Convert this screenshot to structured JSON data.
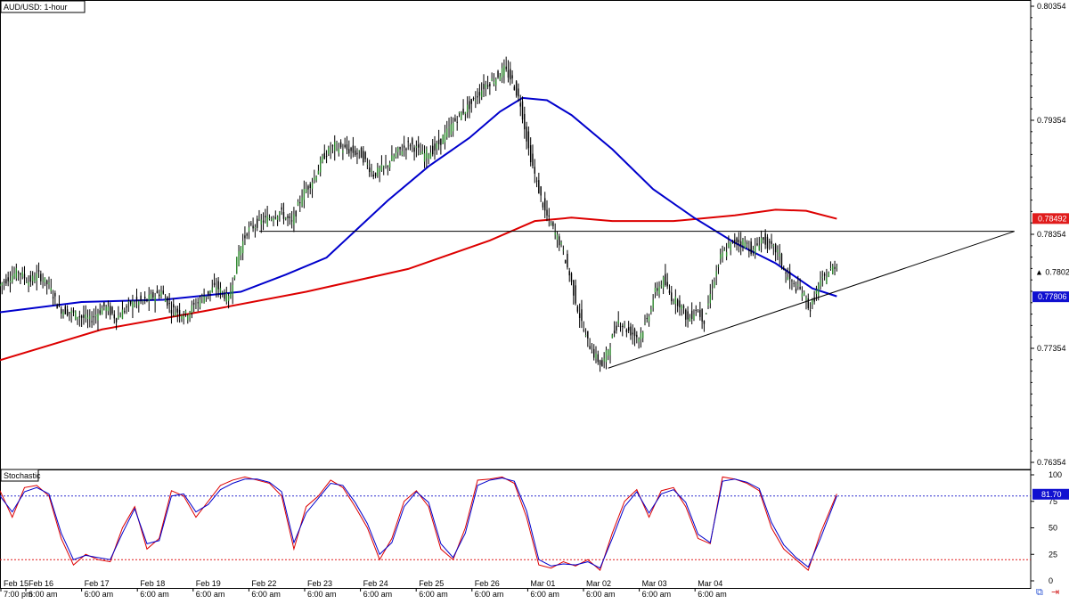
{
  "chart_data": [
    {
      "type": "candlestick",
      "title": "AUD/USD: 1-hour",
      "ylim": [
        0.76354,
        0.80354
      ],
      "yticks": [
        "0.80354",
        "0.79354",
        "0.78354",
        "0.77354",
        "0.76354"
      ],
      "x_dates": [
        "Feb 15",
        "Feb 16",
        "Feb 17",
        "Feb 18",
        "Feb 19",
        "Feb 22",
        "Feb 23",
        "Feb 24",
        "Feb 25",
        "Feb 26",
        "Mar 01",
        "Mar 02",
        "Mar 03",
        "Mar 04"
      ],
      "x_times": [
        "7:00 pm",
        "6:00 am",
        "6:00 am",
        "6:00 am",
        "6:00 am",
        "6:00 am",
        "6:00 am",
        "6:00 am",
        "6:00 am",
        "6:00 am",
        "6:00 am",
        "6:00 am",
        "6:00 am",
        "6:00 am"
      ],
      "price_path": [
        [
          0,
          0.779
        ],
        [
          5,
          0.7797
        ],
        [
          10,
          0.7803
        ],
        [
          15,
          0.7794
        ],
        [
          20,
          0.78
        ],
        [
          25,
          0.779
        ],
        [
          30,
          0.777
        ],
        [
          38,
          0.7765
        ],
        [
          45,
          0.776
        ],
        [
          52,
          0.7772
        ],
        [
          58,
          0.7762
        ],
        [
          65,
          0.7775
        ],
        [
          72,
          0.7777
        ],
        [
          80,
          0.7785
        ],
        [
          85,
          0.777
        ],
        [
          92,
          0.7765
        ],
        [
          100,
          0.778
        ],
        [
          107,
          0.779
        ],
        [
          113,
          0.7778
        ],
        [
          118,
          0.782
        ],
        [
          122,
          0.7838
        ],
        [
          127,
          0.7845
        ],
        [
          133,
          0.785
        ],
        [
          138,
          0.7855
        ],
        [
          144,
          0.7845
        ],
        [
          149,
          0.787
        ],
        [
          155,
          0.7885
        ],
        [
          160,
          0.7905
        ],
        [
          165,
          0.7913
        ],
        [
          170,
          0.791
        ],
        [
          178,
          0.7905
        ],
        [
          184,
          0.7888
        ],
        [
          190,
          0.7895
        ],
        [
          196,
          0.7908
        ],
        [
          202,
          0.7915
        ],
        [
          208,
          0.7905
        ],
        [
          214,
          0.791
        ],
        [
          220,
          0.7925
        ],
        [
          226,
          0.794
        ],
        [
          232,
          0.795
        ],
        [
          238,
          0.7965
        ],
        [
          244,
          0.7973
        ],
        [
          248,
          0.798
        ],
        [
          252,
          0.797
        ],
        [
          256,
          0.795
        ],
        [
          260,
          0.791
        ],
        [
          264,
          0.788
        ],
        [
          268,
          0.7855
        ],
        [
          272,
          0.784
        ],
        [
          276,
          0.7825
        ],
        [
          280,
          0.78
        ],
        [
          284,
          0.777
        ],
        [
          288,
          0.7745
        ],
        [
          292,
          0.773
        ],
        [
          296,
          0.772
        ],
        [
          300,
          0.774
        ],
        [
          304,
          0.776
        ],
        [
          308,
          0.7752
        ],
        [
          314,
          0.7745
        ],
        [
          318,
          0.776
        ],
        [
          322,
          0.7785
        ],
        [
          326,
          0.7795
        ],
        [
          330,
          0.778
        ],
        [
          334,
          0.7775
        ],
        [
          338,
          0.776
        ],
        [
          342,
          0.777
        ],
        [
          346,
          0.776
        ],
        [
          350,
          0.779
        ],
        [
          354,
          0.7815
        ],
        [
          358,
          0.7825
        ],
        [
          362,
          0.783
        ],
        [
          366,
          0.7828
        ],
        [
          370,
          0.782
        ],
        [
          374,
          0.7832
        ],
        [
          378,
          0.7825
        ],
        [
          382,
          0.782
        ],
        [
          386,
          0.78
        ],
        [
          390,
          0.779
        ],
        [
          394,
          0.7785
        ],
        [
          398,
          0.777
        ],
        [
          402,
          0.779
        ],
        [
          406,
          0.78
        ],
        [
          410,
          0.7808
        ]
      ],
      "moving_average_1": {
        "color": "#0000cc",
        "value_label": "0.77806",
        "values": [
          [
            0,
            0.7767
          ],
          [
            40,
            0.7776
          ],
          [
            80,
            0.7778
          ],
          [
            118,
            0.7785
          ],
          [
            140,
            0.78
          ],
          [
            160,
            0.7815
          ],
          [
            175,
            0.784
          ],
          [
            190,
            0.7865
          ],
          [
            210,
            0.7895
          ],
          [
            230,
            0.792
          ],
          [
            245,
            0.7943
          ],
          [
            256,
            0.7955
          ],
          [
            268,
            0.7953
          ],
          [
            280,
            0.794
          ],
          [
            300,
            0.791
          ],
          [
            320,
            0.7875
          ],
          [
            340,
            0.785
          ],
          [
            360,
            0.7828
          ],
          [
            380,
            0.781
          ],
          [
            398,
            0.7788
          ],
          [
            410,
            0.7781
          ]
        ]
      },
      "moving_average_2": {
        "color": "#dd0000",
        "value_label": "0.78492",
        "values": [
          [
            0,
            0.7725
          ],
          [
            50,
            0.7752
          ],
          [
            100,
            0.7768
          ],
          [
            150,
            0.7785
          ],
          [
            200,
            0.7805
          ],
          [
            240,
            0.783
          ],
          [
            262,
            0.7847
          ],
          [
            280,
            0.785
          ],
          [
            300,
            0.7847
          ],
          [
            330,
            0.7847
          ],
          [
            360,
            0.7852
          ],
          [
            380,
            0.7857
          ],
          [
            395,
            0.7856
          ],
          [
            410,
            0.7849
          ]
        ]
      },
      "price_label": "0.78023",
      "horizontal_line": 0.7838,
      "trend_line": [
        [
          298,
          0.7718
        ],
        [
          497,
          0.7838
        ]
      ]
    },
    {
      "type": "line",
      "title": "Stochastic",
      "ylim": [
        0,
        100
      ],
      "yticks": [
        "100",
        "75",
        "50",
        "25",
        "0"
      ],
      "level_label": "81.70",
      "overbought": 80,
      "oversold": 20,
      "series": [
        {
          "color": "#dd0000",
          "values": [
            [
              0,
              85
            ],
            [
              6,
              60
            ],
            [
              12,
              88
            ],
            [
              18,
              90
            ],
            [
              24,
              80
            ],
            [
              30,
              40
            ],
            [
              36,
              15
            ],
            [
              42,
              25
            ],
            [
              48,
              20
            ],
            [
              54,
              18
            ],
            [
              60,
              50
            ],
            [
              66,
              70
            ],
            [
              72,
              30
            ],
            [
              78,
              40
            ],
            [
              84,
              85
            ],
            [
              90,
              80
            ],
            [
              96,
              60
            ],
            [
              102,
              75
            ],
            [
              108,
              90
            ],
            [
              114,
              95
            ],
            [
              120,
              98
            ],
            [
              126,
              95
            ],
            [
              132,
              92
            ],
            [
              138,
              80
            ],
            [
              144,
              30
            ],
            [
              150,
              70
            ],
            [
              156,
              80
            ],
            [
              162,
              95
            ],
            [
              168,
              88
            ],
            [
              174,
              70
            ],
            [
              180,
              50
            ],
            [
              186,
              20
            ],
            [
              192,
              40
            ],
            [
              198,
              75
            ],
            [
              204,
              85
            ],
            [
              210,
              70
            ],
            [
              216,
              30
            ],
            [
              222,
              20
            ],
            [
              228,
              50
            ],
            [
              234,
              95
            ],
            [
              240,
              96
            ],
            [
              246,
              98
            ],
            [
              252,
              92
            ],
            [
              258,
              60
            ],
            [
              264,
              15
            ],
            [
              270,
              12
            ],
            [
              276,
              18
            ],
            [
              282,
              14
            ],
            [
              288,
              20
            ],
            [
              294,
              10
            ],
            [
              300,
              45
            ],
            [
              306,
              75
            ],
            [
              312,
              86
            ],
            [
              318,
              60
            ],
            [
              324,
              85
            ],
            [
              330,
              88
            ],
            [
              336,
              70
            ],
            [
              342,
              40
            ],
            [
              348,
              35
            ],
            [
              354,
              98
            ],
            [
              360,
              96
            ],
            [
              366,
              92
            ],
            [
              372,
              85
            ],
            [
              378,
              50
            ],
            [
              384,
              30
            ],
            [
              390,
              20
            ],
            [
              396,
              10
            ],
            [
              402,
              45
            ],
            [
              410,
              82
            ]
          ]
        },
        {
          "color": "#0000cc",
          "values": [
            [
              0,
              80
            ],
            [
              6,
              65
            ],
            [
              12,
              84
            ],
            [
              18,
              88
            ],
            [
              24,
              82
            ],
            [
              30,
              45
            ],
            [
              36,
              20
            ],
            [
              42,
              24
            ],
            [
              48,
              22
            ],
            [
              54,
              20
            ],
            [
              60,
              45
            ],
            [
              66,
              68
            ],
            [
              72,
              35
            ],
            [
              78,
              38
            ],
            [
              84,
              80
            ],
            [
              90,
              82
            ],
            [
              96,
              65
            ],
            [
              102,
              72
            ],
            [
              108,
              86
            ],
            [
              114,
              92
            ],
            [
              120,
              96
            ],
            [
              126,
              96
            ],
            [
              132,
              93
            ],
            [
              138,
              84
            ],
            [
              144,
              36
            ],
            [
              150,
              64
            ],
            [
              156,
              78
            ],
            [
              162,
              92
            ],
            [
              168,
              90
            ],
            [
              174,
              74
            ],
            [
              180,
              54
            ],
            [
              186,
              25
            ],
            [
              192,
              36
            ],
            [
              198,
              70
            ],
            [
              204,
              84
            ],
            [
              210,
              74
            ],
            [
              216,
              35
            ],
            [
              222,
              22
            ],
            [
              228,
              45
            ],
            [
              234,
              90
            ],
            [
              240,
              95
            ],
            [
              246,
              97
            ],
            [
              252,
              94
            ],
            [
              258,
              66
            ],
            [
              264,
              20
            ],
            [
              270,
              14
            ],
            [
              276,
              16
            ],
            [
              282,
              15
            ],
            [
              288,
              18
            ],
            [
              294,
              12
            ],
            [
              300,
              40
            ],
            [
              306,
              70
            ],
            [
              312,
              84
            ],
            [
              318,
              64
            ],
            [
              324,
              82
            ],
            [
              330,
              86
            ],
            [
              336,
              74
            ],
            [
              342,
              44
            ],
            [
              348,
              36
            ],
            [
              354,
              94
            ],
            [
              360,
              96
            ],
            [
              366,
              93
            ],
            [
              372,
              87
            ],
            [
              378,
              55
            ],
            [
              384,
              34
            ],
            [
              390,
              22
            ],
            [
              396,
              13
            ],
            [
              402,
              40
            ],
            [
              410,
              80
            ]
          ]
        }
      ]
    }
  ]
}
